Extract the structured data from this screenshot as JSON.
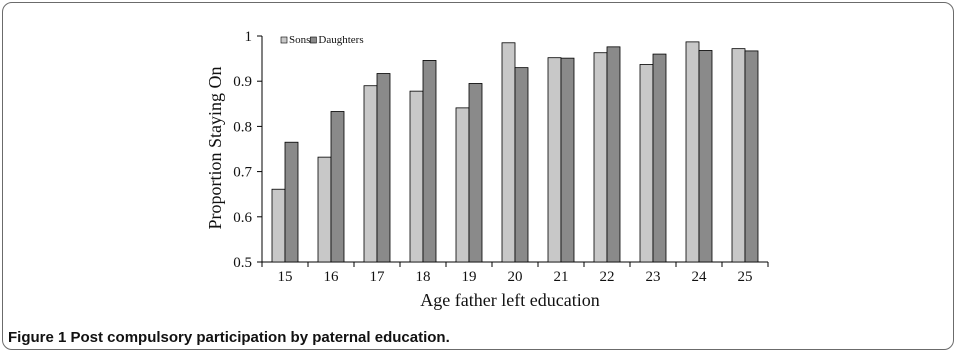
{
  "caption": "Figure 1 Post compulsory participation by paternal education.",
  "chart_data": {
    "type": "bar",
    "categories": [
      "15",
      "16",
      "17",
      "18",
      "19",
      "20",
      "21",
      "22",
      "23",
      "24",
      "25"
    ],
    "series": [
      {
        "name": "Sons",
        "color": "#c8c8c8",
        "values": [
          0.661,
          0.732,
          0.89,
          0.878,
          0.841,
          0.985,
          0.952,
          0.963,
          0.937,
          0.987,
          0.972
        ]
      },
      {
        "name": "Daughters",
        "color": "#8a8a8a",
        "values": [
          0.765,
          0.833,
          0.917,
          0.946,
          0.895,
          0.93,
          0.951,
          0.976,
          0.96,
          0.968,
          0.967
        ]
      }
    ],
    "xlabel": "Age father left education",
    "ylabel": "Proportion Staying On",
    "ylim": [
      0.5,
      1.0
    ],
    "yticks": [
      "0.5",
      "0.6",
      "0.7",
      "0.8",
      "0.9",
      "1"
    ],
    "legend_position": "top-left"
  }
}
